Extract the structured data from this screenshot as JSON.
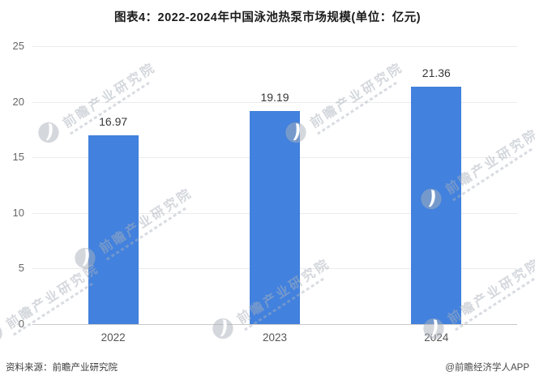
{
  "title": "图表4：2022-2024年中国泳池热泵市场规模(单位：亿元)",
  "chart_data": {
    "type": "bar",
    "title": "图表4：2022-2024年中国泳池热泵市场规模(单位：亿元)",
    "categories": [
      "2022",
      "2023",
      "2024"
    ],
    "values": [
      16.97,
      19.19,
      21.36
    ],
    "value_labels": [
      "16.97",
      "19.19",
      "21.36"
    ],
    "unit": "亿元",
    "xlabel": "",
    "ylabel": "",
    "ylim": [
      0,
      25
    ],
    "yticks": [
      0,
      5,
      10,
      15,
      20,
      25
    ],
    "grid": true,
    "legend_position": "none",
    "bar_color": "#4281DD"
  },
  "footer": {
    "source": "资料来源：前瞻产业研究院",
    "credit": "@前瞻经济学人APP"
  },
  "watermark": {
    "text": "前瞻产业研究院",
    "icon": "qianzhan-logo-icon"
  }
}
